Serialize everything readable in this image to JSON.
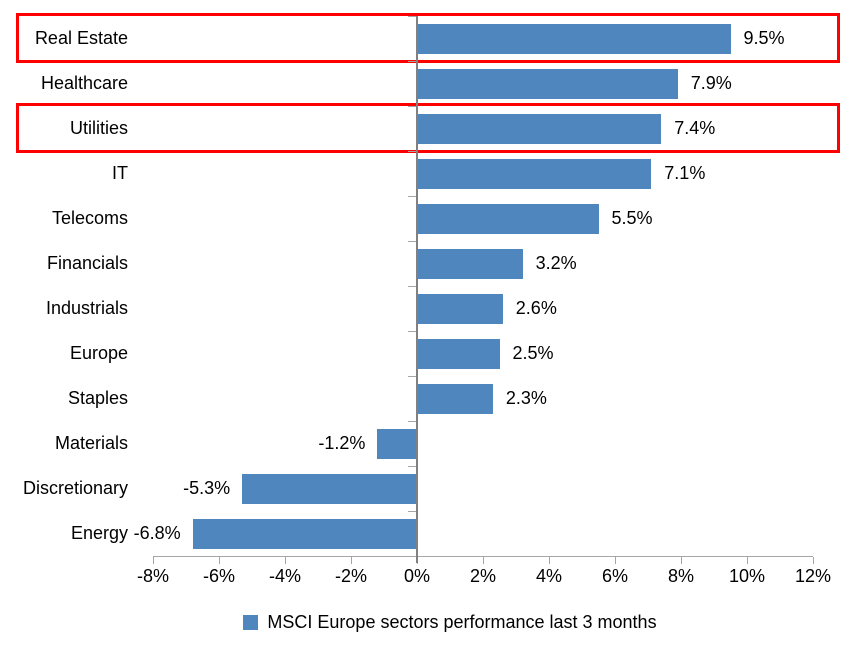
{
  "chart_data": {
    "type": "bar",
    "orientation": "horizontal",
    "title": "",
    "categories": [
      "Real Estate",
      "Healthcare",
      "Utilities",
      "IT",
      "Telecoms",
      "Financials",
      "Industrials",
      "Europe",
      "Staples",
      "Materials",
      "Discretionary",
      "Energy"
    ],
    "values": [
      9.5,
      7.9,
      7.4,
      7.1,
      5.5,
      3.2,
      2.6,
      2.5,
      2.3,
      -1.2,
      -5.3,
      -6.8
    ],
    "value_labels": [
      "9.5%",
      "7.9%",
      "7.4%",
      "7.1%",
      "5.5%",
      "3.2%",
      "2.6%",
      "2.5%",
      "2.3%",
      "-1.2%",
      "-5.3%",
      "-6.8%"
    ],
    "x_axis": {
      "min": -8,
      "max": 12,
      "tick_values": [
        -8,
        -6,
        -4,
        -2,
        0,
        2,
        4,
        6,
        8,
        10,
        12
      ],
      "tick_labels": [
        "-8%",
        "-6%",
        "-4%",
        "-2%",
        "0%",
        "2%",
        "4%",
        "6%",
        "8%",
        "10%",
        "12%"
      ]
    },
    "legend": {
      "position": "bottom",
      "label": "MSCI Europe sectors performance last 3 months"
    },
    "highlighted_categories": [
      "Real Estate",
      "Utilities"
    ],
    "grid": "off",
    "colors": {
      "bar": "#4F86BE",
      "highlight_box": "#FE0000",
      "axis_line": "#A6A6A6",
      "zero_line": "#808080",
      "text": "#000000"
    }
  }
}
